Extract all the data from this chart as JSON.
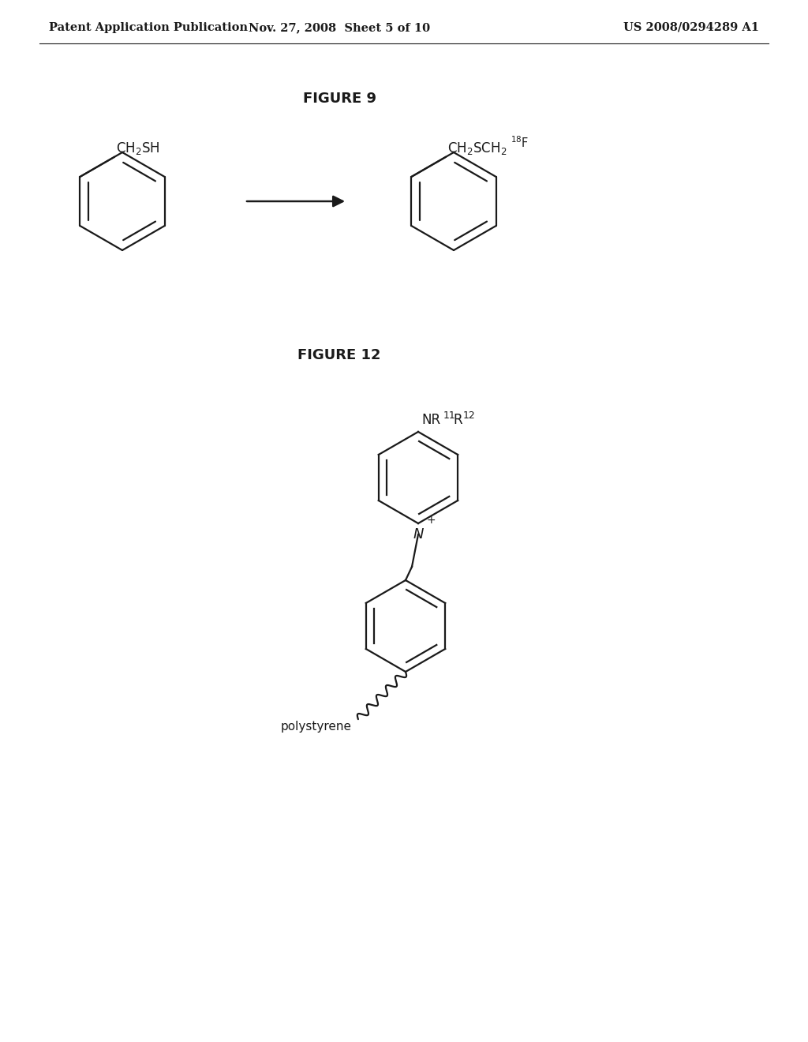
{
  "background_color": "#ffffff",
  "header_left": "Patent Application Publication",
  "header_center": "Nov. 27, 2008  Sheet 5 of 10",
  "header_right": "US 2008/0294289 A1",
  "figure9_title": "FIGURE 9",
  "figure12_title": "FIGURE 12",
  "fig12_label_polystyrene": "polystyrene",
  "line_color": "#1a1a1a",
  "line_width": 1.6,
  "text_color": "#1a1a1a"
}
